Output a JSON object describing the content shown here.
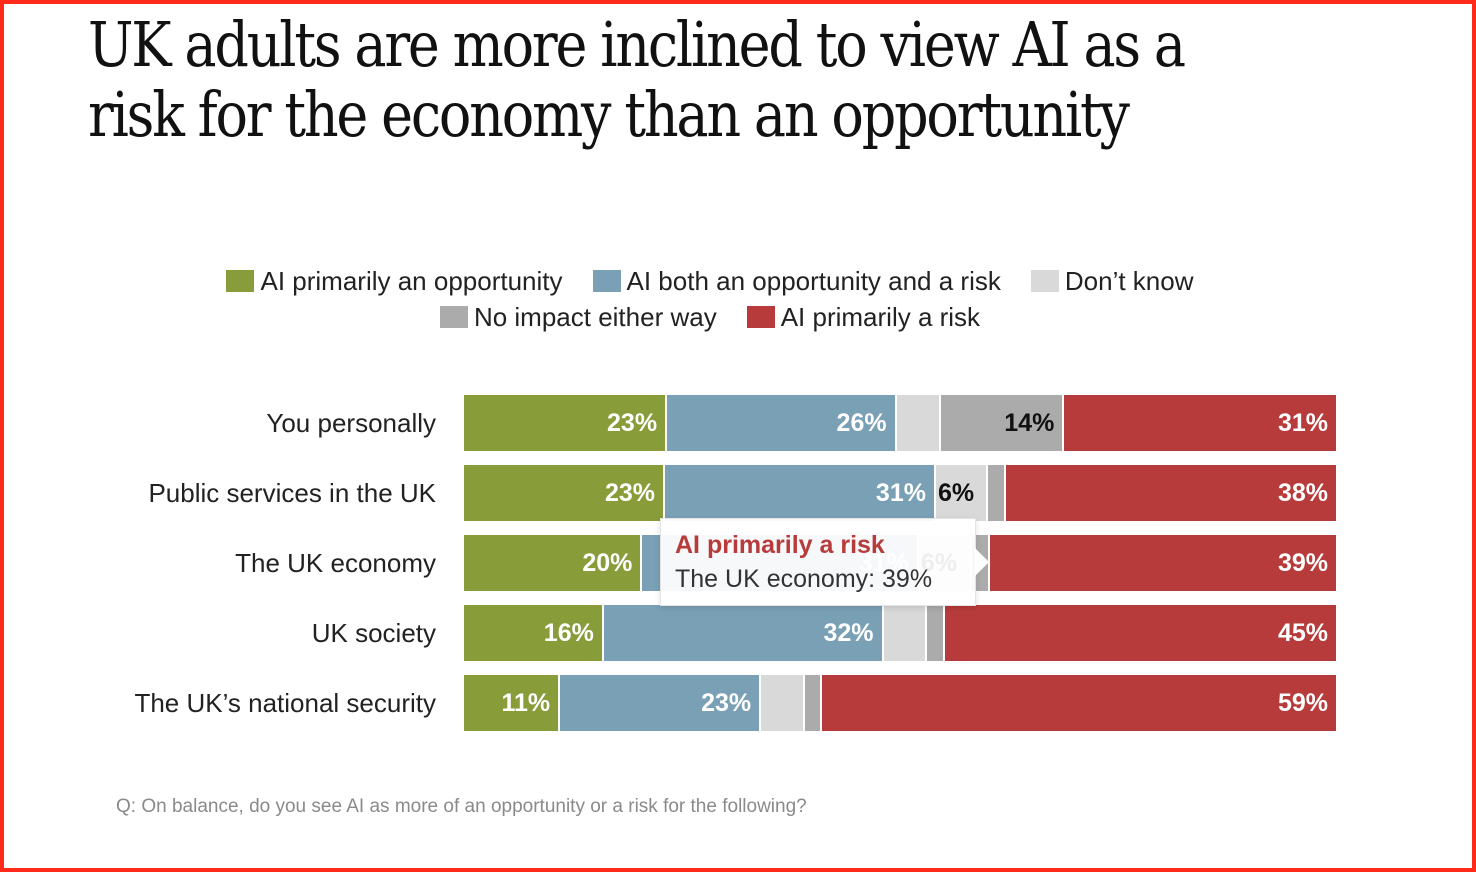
{
  "chart_data": {
    "type": "bar",
    "orientation": "horizontal",
    "stacked": true,
    "title": "UK adults are more inclined to view AI as a risk for the economy than an opportunity",
    "legend_placement": "top",
    "categories": [
      "You personally",
      "Public services in the UK",
      "The UK economy",
      "UK society",
      "The UK’s national security"
    ],
    "series": [
      {
        "name": "AI primarily an opportunity",
        "color": "#889c3a",
        "label_color": "#ffffff",
        "values": [
          23,
          23,
          20,
          16,
          11
        ],
        "labels": [
          "23%",
          "23%",
          "20%",
          "16%",
          "11%"
        ]
      },
      {
        "name": "AI both an opportunity and a risk",
        "color": "#7aa0b6",
        "label_color": "#ffffff",
        "values": [
          26,
          31,
          31,
          32,
          23
        ],
        "labels": [
          "26%",
          "31%",
          "31%",
          "32%",
          "23%"
        ]
      },
      {
        "name": "Don’t know",
        "color": "#d9d9d9",
        "label_color": "#111111",
        "values": [
          5,
          6,
          6,
          5,
          5
        ],
        "labels": [
          "",
          "6%",
          "6%",
          "",
          ""
        ]
      },
      {
        "name": "No impact either way",
        "color": "#ababab",
        "label_color": "#111111",
        "values": [
          14,
          2,
          2,
          2,
          2
        ],
        "labels": [
          "14%",
          "",
          "",
          "",
          ""
        ]
      },
      {
        "name": "AI primarily a risk",
        "color": "#b83b3b",
        "label_color": "#ffffff",
        "values": [
          31,
          38,
          39,
          45,
          59
        ],
        "labels": [
          "31%",
          "38%",
          "39%",
          "45%",
          "59%"
        ]
      }
    ],
    "xlim": [
      0,
      100
    ],
    "grid": false
  },
  "tooltip": {
    "series": "AI primarily a risk",
    "text": "The UK economy: 39%",
    "color": "#b83b3b"
  },
  "footnote": "Q: On balance, do you see AI as more of an opportunity or a risk for the following?",
  "colors": {
    "frame": "#ff2a1a"
  }
}
